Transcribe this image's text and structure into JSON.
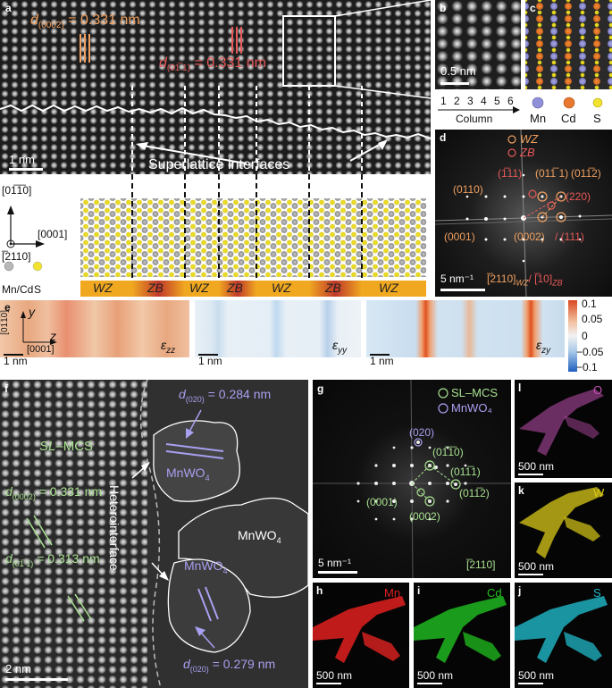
{
  "panels": {
    "a": "a",
    "b": "b",
    "c": "c",
    "d": "d",
    "e": "e",
    "f": "f",
    "g": "g",
    "h": "h",
    "i": "i",
    "j": "j",
    "k": "k",
    "l": "l"
  },
  "panel_a": {
    "d0002": "d(0002) = 0.331 nm",
    "d0111": "d(01-11) = 0.331 nm",
    "d_sym": "d",
    "d0002_sub": "(0002)",
    "d0002_val": " = 0.331 nm",
    "d0111_sub": "(01̅ 1)",
    "d0111_val": " = 0.331 nm",
    "scale": "1 nm",
    "interfaces_label": "Superlattice interfaces",
    "axis_up": "[01̅1̅0]",
    "axis_right": "[0001]",
    "axis_out": "[̅2110]",
    "legend_mncd": "Mn/Cd",
    "legend_s": "S",
    "phases": [
      "WZ",
      "ZB",
      "WZ",
      "ZB",
      "WZ",
      "ZB",
      "WZ"
    ],
    "colors": {
      "wz": "#f0a820",
      "zb_edge": "#f0a820",
      "zb_core": "#c0392b",
      "mn": "#9090c8",
      "cd": "#e87830",
      "s": "#f2e230",
      "cation": "#b8b8b8"
    }
  },
  "panel_b": {
    "scale": "0.5 nm",
    "column_label": "Column",
    "columns": [
      "1",
      "2",
      "3",
      "4",
      "5",
      "6"
    ]
  },
  "panel_c": {
    "legend": [
      "Mn",
      "Cd",
      "S"
    ]
  },
  "panel_d": {
    "legend_wz": "WZ",
    "legend_zb": "ZB",
    "spots": [
      "(1̅11)",
      "(011̅ 1)",
      "(011̅2)",
      "(0110)",
      "(220)",
      "(0001)",
      "(0002)",
      "/ (111)"
    ],
    "zone": "[̅2110]WZ/ [̅10]ZB",
    "zone_wz": "[̅2110]",
    "zone_wz_sub": "WZ",
    "zone_zb": "/ [̅10]",
    "zone_zb_sub": "ZB",
    "scale": "5 nm⁻¹"
  },
  "panel_e": {
    "axis_y": "y",
    "axis_z": "z",
    "axis_up": "[01̅1̅0]",
    "axis_right": "[0001]",
    "scale": "1 nm",
    "maps": [
      "εzz",
      "εyy",
      "εzy"
    ],
    "map_eps": "ε",
    "map_subs": [
      "zz",
      "yy",
      "zy"
    ],
    "colorbar_ticks": [
      "0.1",
      "0.05",
      "0",
      "−0.05",
      "−0.1"
    ],
    "colorbar_colors": [
      "#d94820",
      "#f2c0a0",
      "#f2f2f2",
      "#a8c8e8",
      "#2060c0"
    ]
  },
  "panel_f": {
    "mcs": "SL–MCS",
    "mcs_sl": "SL",
    "mcs_rest": "–MCS",
    "d0002_val": " = 0.331 nm",
    "d0111_val": " = 0.313 nm",
    "d020_top_val": " = 0.284 nm",
    "d020_bot_val": " = 0.279 nm",
    "mnwo4": "MnWO",
    "mnwo4_sub": "4",
    "heterointerface": "Heterointerface",
    "scale": "2 nm"
  },
  "panel_g": {
    "legend_mcs": "SL–MCS",
    "legend_mnwo4": "MnWO₄",
    "spots": [
      "(020)",
      "(01̅1̅0)",
      "(011̅1)",
      "(011̅2)",
      "(0001)",
      "(0002)"
    ],
    "zone": "[̅2110]",
    "scale": "5 nm⁻¹"
  },
  "eds_maps": [
    {
      "panel": "h",
      "element": "Mn",
      "color": "#e02020",
      "scale": "500 nm"
    },
    {
      "panel": "i",
      "element": "Cd",
      "color": "#20c020",
      "scale": "500 nm"
    },
    {
      "panel": "j",
      "element": "S",
      "color": "#20b8c8",
      "scale": "500 nm"
    },
    {
      "panel": "k",
      "element": "W",
      "color": "#d8c818",
      "scale": "500 nm"
    },
    {
      "panel": "l",
      "element": "O",
      "color": "#c050b0",
      "scale": "500 nm"
    }
  ]
}
